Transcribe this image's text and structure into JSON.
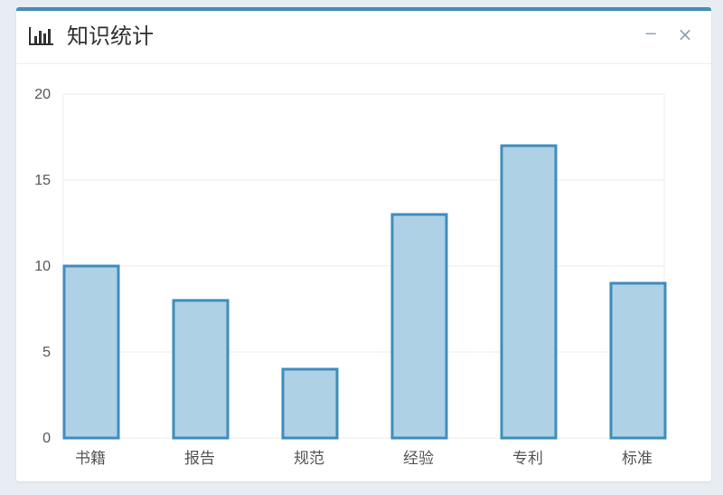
{
  "widget": {
    "title": "知识统计",
    "title_icon": "bar-chart-icon",
    "minimize_label": "−",
    "close_label": "×"
  },
  "chart_data": {
    "type": "bar",
    "title": "知识统计",
    "categories": [
      "书籍",
      "报告",
      "规范",
      "经验",
      "专利",
      "标准"
    ],
    "values": [
      10,
      8,
      4,
      13,
      17,
      9
    ],
    "ylim": [
      0,
      20
    ],
    "yticks": [
      0,
      5,
      10,
      15,
      20
    ],
    "xlabel": "",
    "ylabel": "",
    "grid": true,
    "colors": {
      "bar_fill": "#afd1e6",
      "bar_stroke": "#3f8dbc",
      "grid": "#eeeeee",
      "axis_text": "#555555"
    }
  }
}
